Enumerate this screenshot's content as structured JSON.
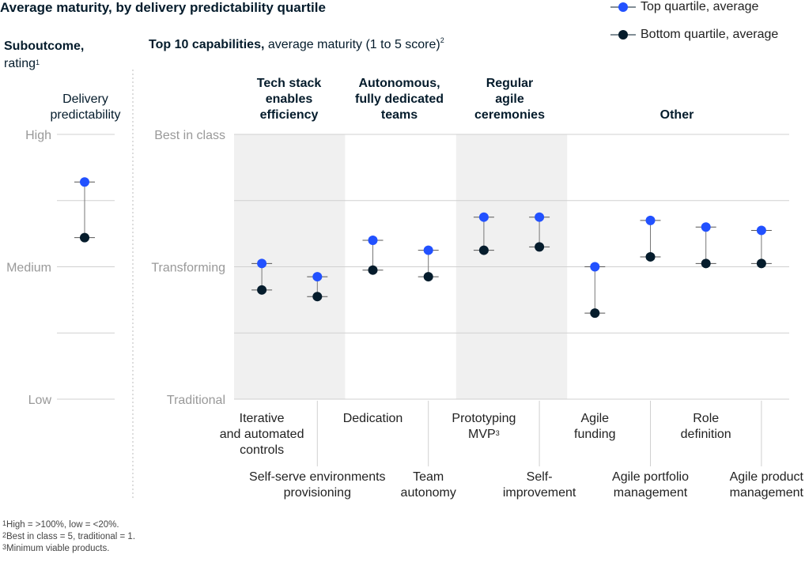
{
  "title": "Average maturity, by delivery predictability quartile",
  "legend": {
    "top": "Top quartile, average",
    "bottom": "Bottom quartile, average"
  },
  "left_panel": {
    "heading_bold": "Suboutcome,",
    "heading_rest": "rating",
    "heading_sup": "1",
    "column_label_1": "Delivery",
    "column_label_2": "predictability"
  },
  "right_panel": {
    "heading_bold": "Top 10 capabilities,",
    "heading_rest": " average maturity (1 to 5 score)",
    "heading_sup": "2"
  },
  "groups": [
    {
      "lines": [
        "Tech stack",
        "enables",
        "efficiency"
      ]
    },
    {
      "lines": [
        "Autonomous,",
        "fully dedicated",
        "teams"
      ]
    },
    {
      "lines": [
        "Regular",
        "agile",
        "ceremonies"
      ]
    },
    {
      "lines": [
        "Other"
      ]
    }
  ],
  "footnotes": {
    "f1_sup": "1",
    "f1": "High = >100%, low = <20%.",
    "f2_sup": "2",
    "f2": "Best in class = 5, traditional = 1.",
    "f3_sup": "3",
    "f3": "Minimum viable products."
  },
  "colors": {
    "top": "#2251ff",
    "bottom": "#051c2c",
    "shade": "#f0f0f0",
    "grid": "#d0d0d0",
    "tick_label": "#999999"
  },
  "chart_data": [
    {
      "type": "dumbbell",
      "title": "Delivery predictability",
      "y_ticks": [
        "High",
        "Medium",
        "Low"
      ],
      "ylim_labels": {
        "top": "High",
        "bottom": "Low"
      },
      "top_quartile": 0.82,
      "bottom_quartile": 0.61
    },
    {
      "type": "dumbbell",
      "title": "Top 10 capabilities",
      "y_ticks": [
        "Best in class",
        "Transforming",
        "Traditional"
      ],
      "ylim": [
        1,
        5
      ],
      "capabilities": [
        {
          "label_lines": [
            "Iterative",
            "and automated",
            "controls"
          ],
          "label_row": 1,
          "top": 3.05,
          "bottom": 2.65,
          "group": 0
        },
        {
          "label_lines": [
            "Self-serve environments",
            "provisioning"
          ],
          "label_row": 2,
          "top": 2.85,
          "bottom": 2.55,
          "group": 0
        },
        {
          "label_lines": [
            "Dedication"
          ],
          "label_row": 1,
          "top": 3.4,
          "bottom": 2.95,
          "group": 1
        },
        {
          "label_lines": [
            "Team",
            "autonomy"
          ],
          "label_row": 2,
          "top": 3.25,
          "bottom": 2.85,
          "group": 1
        },
        {
          "label_lines": [
            "Prototyping",
            "MVP"
          ],
          "label_sup": "3",
          "label_row": 1,
          "top": 3.75,
          "bottom": 3.25,
          "group": 2
        },
        {
          "label_lines": [
            "Self-",
            "improvement"
          ],
          "label_row": 2,
          "top": 3.75,
          "bottom": 3.3,
          "group": 2
        },
        {
          "label_lines": [
            "Agile",
            "funding"
          ],
          "label_row": 1,
          "top": 3.0,
          "bottom": 2.3,
          "group": 3
        },
        {
          "label_lines": [
            "Agile portfolio",
            "management"
          ],
          "label_row": 2,
          "top": 3.7,
          "bottom": 3.15,
          "group": 3
        },
        {
          "label_lines": [
            "Role",
            "definition"
          ],
          "label_row": 1,
          "top": 3.6,
          "bottom": 3.05,
          "group": 3
        },
        {
          "label_lines": [
            "Agile product",
            "management"
          ],
          "label_row": 2,
          "top": 3.55,
          "bottom": 3.05,
          "group": 3
        }
      ]
    }
  ]
}
